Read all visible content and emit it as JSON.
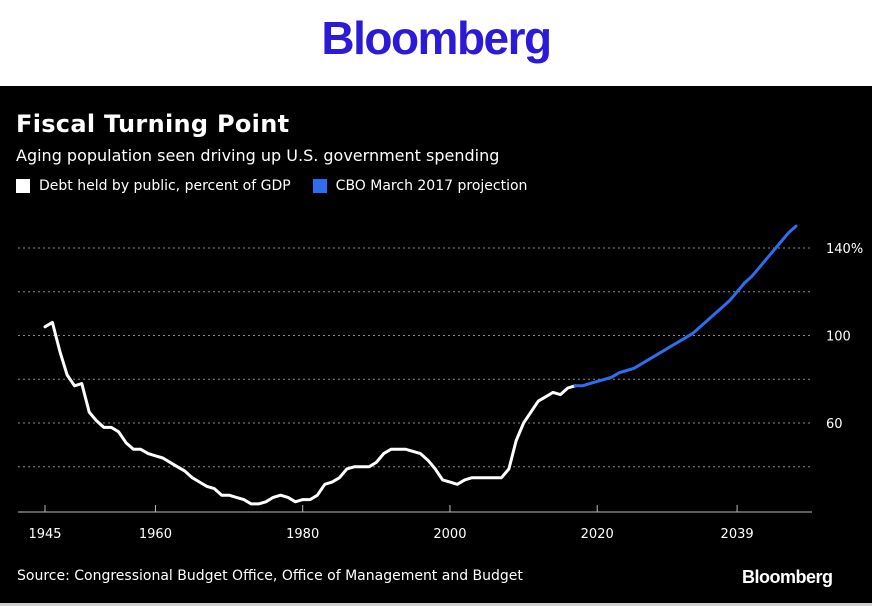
{
  "brand": {
    "top": "Bloomberg",
    "bottom": "Bloomberg"
  },
  "colors": {
    "debt": "#ffffff",
    "projection": "#2d6ef0",
    "background": "#000000",
    "brand": "#2b1bd6"
  },
  "source": "Source: Congressional Budget Office, Office of Management and Budget",
  "chart_data": {
    "type": "line",
    "title": "Fiscal Turning Point",
    "subtitle": "Aging population seen driving up U.S. government spending",
    "xlabel": "",
    "ylabel": "",
    "xlim": [
      1945,
      2047
    ],
    "ylim": [
      20,
      150
    ],
    "x_ticks": [
      1945,
      1960,
      1980,
      2000,
      2020,
      2039
    ],
    "y_ticks": [
      {
        "value": 140,
        "label": "140%"
      },
      {
        "value": 100,
        "label": "100"
      },
      {
        "value": 60,
        "label": "60"
      }
    ],
    "gridlines": [
      140,
      120,
      100,
      80,
      60,
      40
    ],
    "legend": [
      "Debt held by public, percent of GDP",
      "CBO March 2017 projection"
    ],
    "series": [
      {
        "name": "Debt held by public, percent of GDP",
        "color": "#ffffff",
        "x": [
          1945,
          1946,
          1947,
          1948,
          1949,
          1950,
          1951,
          1952,
          1953,
          1954,
          1955,
          1956,
          1957,
          1958,
          1959,
          1960,
          1961,
          1962,
          1963,
          1964,
          1965,
          1966,
          1967,
          1968,
          1969,
          1970,
          1971,
          1972,
          1973,
          1974,
          1975,
          1976,
          1977,
          1978,
          1979,
          1980,
          1981,
          1982,
          1983,
          1984,
          1985,
          1986,
          1987,
          1988,
          1989,
          1990,
          1991,
          1992,
          1993,
          1994,
          1995,
          1996,
          1997,
          1998,
          1999,
          2000,
          2001,
          2002,
          2003,
          2004,
          2005,
          2006,
          2007,
          2008,
          2009,
          2010,
          2011,
          2012,
          2013,
          2014,
          2015,
          2016,
          2017
        ],
        "values": [
          104,
          106,
          93,
          82,
          77,
          78,
          65,
          61,
          58,
          58,
          56,
          51,
          48,
          48,
          46,
          45,
          44,
          42,
          40,
          38,
          35,
          33,
          31,
          30,
          27,
          27,
          26,
          25,
          23,
          23,
          24,
          26,
          27,
          26,
          24,
          25,
          25,
          27,
          32,
          33,
          35,
          39,
          40,
          40,
          40,
          42,
          46,
          48,
          48,
          48,
          47,
          46,
          43,
          39,
          34,
          33,
          32,
          34,
          35,
          35,
          35,
          35,
          35,
          39,
          52,
          60,
          65,
          70,
          72,
          74,
          73,
          76,
          77
        ]
      },
      {
        "name": "CBO March 2017 projection",
        "color": "#2d6ef0",
        "x": [
          2017,
          2018,
          2019,
          2020,
          2021,
          2022,
          2023,
          2024,
          2025,
          2026,
          2027,
          2028,
          2029,
          2030,
          2031,
          2032,
          2033,
          2034,
          2035,
          2036,
          2037,
          2038,
          2039,
          2040,
          2041,
          2042,
          2043,
          2044,
          2045,
          2046,
          2047
        ],
        "values": [
          77,
          77,
          78,
          79,
          80,
          81,
          83,
          84,
          85,
          87,
          89,
          91,
          93,
          95,
          97,
          99,
          101,
          104,
          107,
          110,
          113,
          116,
          120,
          124,
          127,
          131,
          135,
          139,
          143,
          147,
          150
        ]
      }
    ]
  }
}
